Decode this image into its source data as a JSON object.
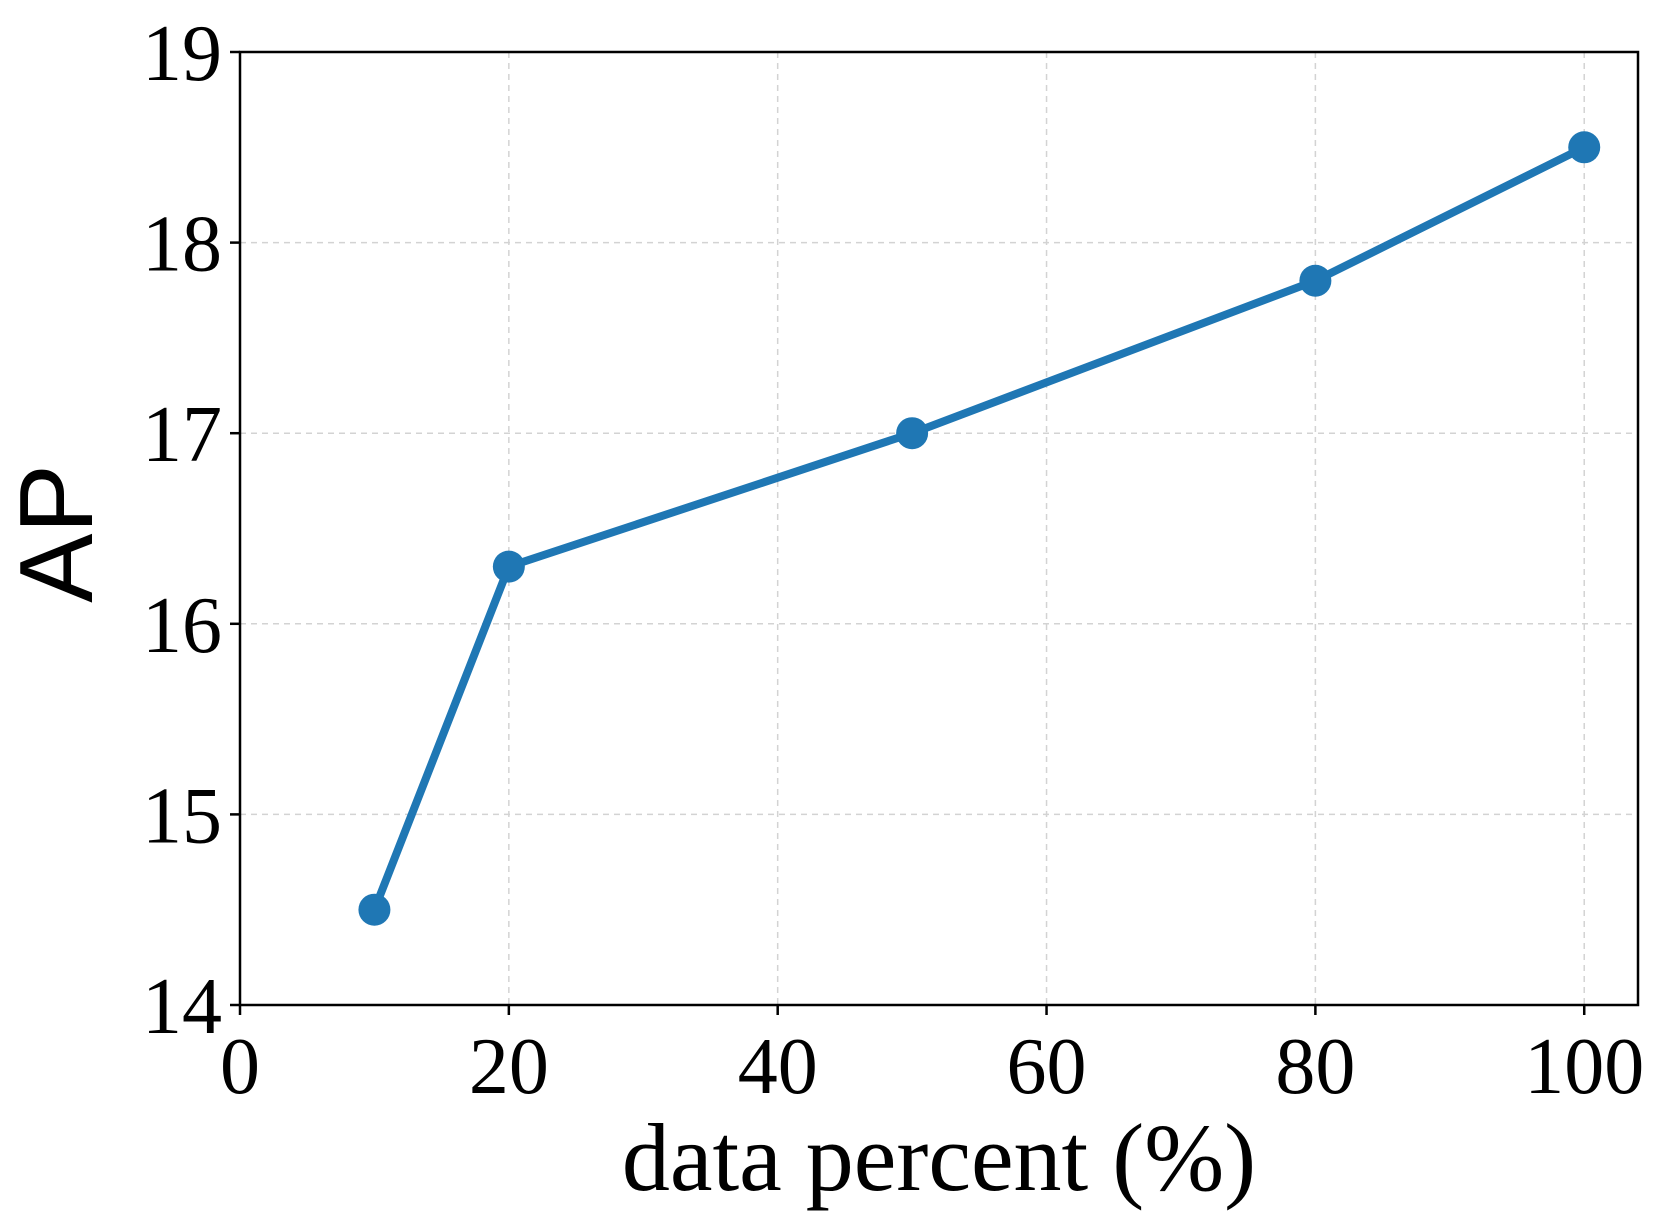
{
  "chart_data": {
    "type": "line",
    "title": "",
    "xlabel": "data percent (%)",
    "ylabel": "AP",
    "xlim": [
      0,
      104
    ],
    "ylim": [
      14,
      19
    ],
    "x_ticks": [
      0,
      20,
      40,
      60,
      80,
      100
    ],
    "y_ticks": [
      14,
      15,
      16,
      17,
      18,
      19
    ],
    "grid": true,
    "legend": "none",
    "series": [
      {
        "color": "#1f77b4",
        "marker": "circle",
        "points": [
          {
            "x": 10,
            "y": 14.5
          },
          {
            "x": 20,
            "y": 16.3
          },
          {
            "x": 50,
            "y": 17.0
          },
          {
            "x": 80,
            "y": 17.8
          },
          {
            "x": 100,
            "y": 18.5
          }
        ]
      }
    ]
  }
}
